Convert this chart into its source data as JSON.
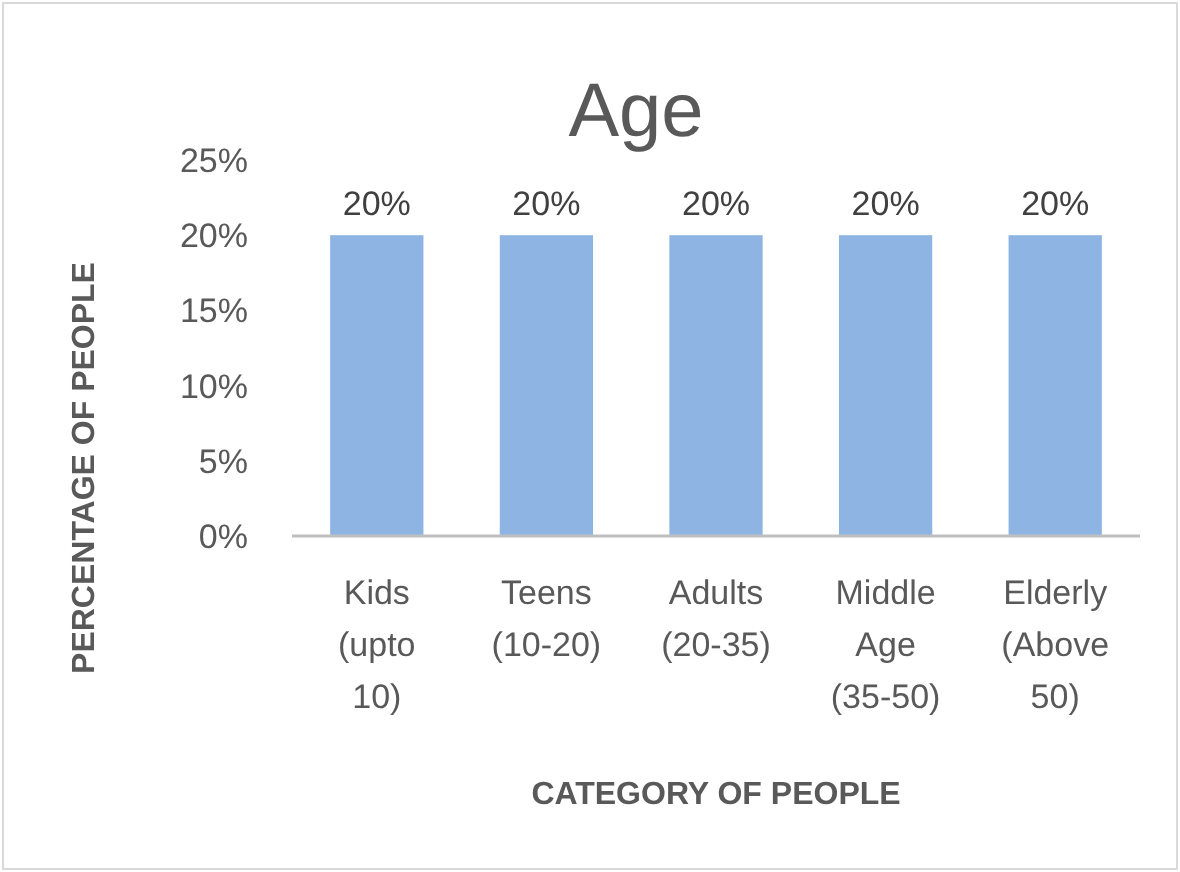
{
  "chart_data": {
    "type": "bar",
    "title": "Age",
    "xlabel": "CATEGORY OF PEOPLE",
    "ylabel": "PERCENTAGE OF PEOPLE",
    "categories": [
      "Kids (upto 10)",
      "Teens (10-20)",
      "Adults (20-35)",
      "Middle Age (35-50)",
      "Elderly (Above 50)"
    ],
    "values": [
      20,
      20,
      20,
      20,
      20
    ],
    "color": "#8db4e2",
    "value_labels": [
      "20%",
      "20%",
      "20%",
      "20%",
      "20%"
    ],
    "ylim": [
      0,
      25
    ],
    "yticks": [
      {
        "value": 0,
        "label": "0%"
      },
      {
        "value": 5,
        "label": "5%"
      },
      {
        "value": 10,
        "label": "10%"
      },
      {
        "value": 15,
        "label": "15%"
      },
      {
        "value": 20,
        "label": "20%"
      },
      {
        "value": 25,
        "label": "25%"
      }
    ],
    "grid": false
  }
}
